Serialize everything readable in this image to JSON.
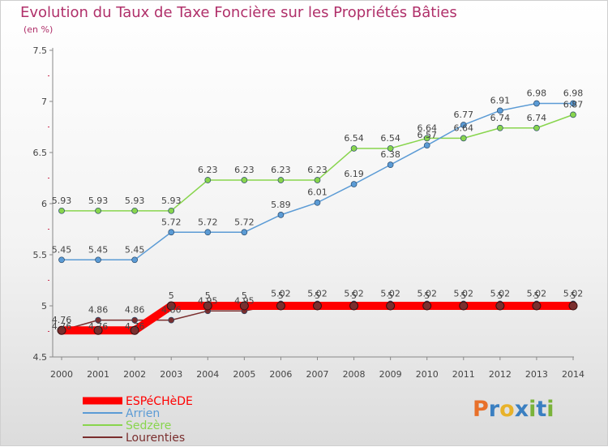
{
  "chart_data": {
    "type": "line",
    "title": "Evolution du Taux de Taxe Foncière sur les Propriétés Bâties",
    "subtitle": "(en %)",
    "xlabel": "",
    "ylabel": "",
    "ylim": [
      4.5,
      7.5
    ],
    "yticks": [
      "4.5",
      "5",
      "5.5",
      "6",
      "6.5",
      "7",
      "7.5"
    ],
    "categories": [
      "2000",
      "2001",
      "2002",
      "2003",
      "2004",
      "2005",
      "2006",
      "2007",
      "2008",
      "2009",
      "2010",
      "2011",
      "2012",
      "2013",
      "2014"
    ],
    "grid": false,
    "legend_position": "bottom-left",
    "series": [
      {
        "name": "Sedzère",
        "color": "#88d54d",
        "values": [
          5.93,
          5.93,
          5.93,
          5.93,
          6.23,
          6.23,
          6.23,
          6.23,
          6.54,
          6.54,
          6.64,
          6.64,
          6.74,
          6.74,
          6.87
        ],
        "labels": [
          "5.93",
          "5.93",
          "5.93",
          "5.93",
          "6.23",
          "6.23",
          "6.23",
          "6.23",
          "6.54",
          "6.54",
          "6.64",
          "6.64",
          "6.74",
          "6.74",
          "6.87"
        ]
      },
      {
        "name": "Arrien",
        "color": "#5b9bd5",
        "values": [
          5.45,
          5.45,
          5.45,
          5.72,
          5.72,
          5.72,
          5.89,
          6.01,
          6.19,
          6.38,
          6.57,
          6.77,
          6.91,
          6.98,
          6.98
        ],
        "labels": [
          "5.45",
          "5.45",
          "5.45",
          "5.72",
          "5.72",
          "5.72",
          "5.89",
          "6.01",
          "6.19",
          "6.38",
          "6.57",
          "6.77",
          "6.91",
          "6.98",
          "6.98"
        ]
      },
      {
        "name": "Lourenties",
        "color": "#7a2e2e",
        "values": [
          4.76,
          4.86,
          4.86,
          4.86,
          4.95,
          4.95,
          5.02,
          5.02,
          5.02,
          5.02,
          5.02,
          5.02,
          5.02,
          5.02,
          5.02
        ],
        "labels": [
          "4.76",
          "4.86",
          "4.86",
          "4.86",
          "4.95",
          "4.95",
          "5.02",
          "5.02",
          "5.02",
          "5.02",
          "5.02",
          "5.02",
          "5.02",
          "5.02",
          "5.02"
        ]
      },
      {
        "name": "ESPéCHèDE",
        "color": "#ff0000",
        "values": [
          4.76,
          4.76,
          4.76,
          5,
          5,
          5,
          5,
          5,
          5,
          5,
          5,
          5,
          5,
          5,
          5
        ],
        "labels": [
          "4.76",
          "4.76",
          "4.76",
          "5",
          "5",
          "5",
          "5",
          "5",
          "5",
          "5",
          "5",
          "5",
          "5",
          "5",
          "5"
        ]
      }
    ],
    "legend_order": [
      "ESPéCHèDE",
      "Arrien",
      "Sedzère",
      "Lourenties"
    ]
  },
  "brand": {
    "logo_letters": [
      "P",
      "r",
      "o",
      "x",
      "i",
      "t",
      "i"
    ],
    "logo_colors": [
      "#e8702a",
      "#3a7fc1",
      "#e8b22a",
      "#3a7fc1",
      "#7ab33a",
      "#3a7fc1",
      "#7ab33a"
    ]
  }
}
